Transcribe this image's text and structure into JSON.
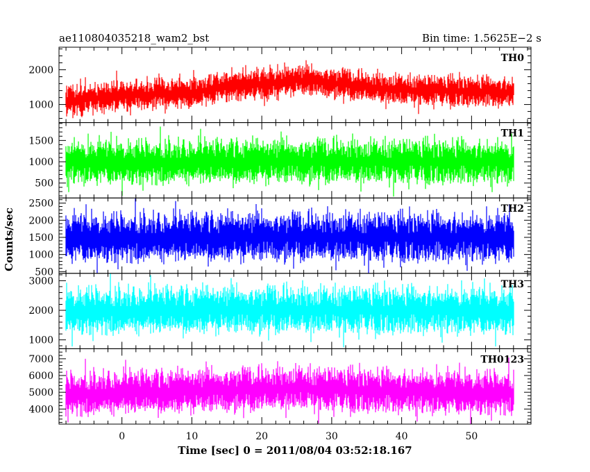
{
  "header": {
    "left_title": "ae110804035218_wam2_bst",
    "right_title": "Bin time: 1.5625E−2 s"
  },
  "chart_data": {
    "type": "line",
    "title": "ae110804035218_wam2_bst",
    "subtitle": "Bin time: 1.5625E−2 s",
    "xlabel": "Time [sec] 0 = 2011/08/04 03:52:18.167",
    "ylabel": "Counts/sec",
    "xlim": [
      -9,
      58.5
    ],
    "x_ticks": [
      0,
      10,
      20,
      30,
      40,
      50
    ],
    "x_ticks_labels": [
      "0",
      "10",
      "20",
      "30",
      "40",
      "50"
    ],
    "x_data_range": [
      -8,
      56
    ],
    "bin_time_s": 0.015625,
    "grid": false,
    "panels": [
      {
        "label": "TH0",
        "color": "#ff0000",
        "ylim": [
          480,
          2650
        ],
        "y_ticks": [
          1000,
          2000
        ],
        "y_ticks_labels": [
          "1000",
          "2000"
        ],
        "trend": [
          [
            -8,
            1100
          ],
          [
            0,
            1250
          ],
          [
            10,
            1350
          ],
          [
            15,
            1500
          ],
          [
            20,
            1600
          ],
          [
            25,
            1700
          ],
          [
            30,
            1620
          ],
          [
            35,
            1500
          ],
          [
            40,
            1420
          ],
          [
            50,
            1380
          ],
          [
            56,
            1350
          ]
        ],
        "amplitude": 520
      },
      {
        "label": "TH1",
        "color": "#00ff00",
        "ylim": [
          150,
          1920
        ],
        "y_ticks": [
          500,
          1000,
          1500
        ],
        "y_ticks_labels": [
          "500",
          "1000",
          "1500"
        ],
        "trend": [
          [
            -8,
            1000
          ],
          [
            56,
            1000
          ]
        ],
        "amplitude": 620
      },
      {
        "label": "TH2",
        "color": "#0000ff",
        "ylim": [
          450,
          2650
        ],
        "y_ticks": [
          500,
          1000,
          1500,
          2000,
          2500
        ],
        "y_ticks_labels": [
          "500",
          "1000",
          "1500",
          "2000",
          "2500"
        ],
        "trend": [
          [
            -8,
            1500
          ],
          [
            56,
            1500
          ]
        ],
        "amplitude": 850
      },
      {
        "label": "TH3",
        "color": "#00ffff",
        "ylim": [
          700,
          3250
        ],
        "y_ticks": [
          1000,
          2000,
          3000
        ],
        "y_ticks_labels": [
          "1000",
          "2000",
          "3000"
        ],
        "trend": [
          [
            -8,
            2000
          ],
          [
            56,
            2000
          ]
        ],
        "amplitude": 950
      },
      {
        "label": "TH0123",
        "color": "#ff00ff",
        "ylim": [
          3100,
          7600
        ],
        "y_ticks": [
          4000,
          5000,
          6000,
          7000
        ],
        "y_ticks_labels": [
          "4000",
          "5000",
          "6000",
          "7000"
        ],
        "trend": [
          [
            -8,
            4900
          ],
          [
            0,
            5000
          ],
          [
            10,
            5050
          ],
          [
            20,
            5150
          ],
          [
            25,
            5250
          ],
          [
            30,
            5150
          ],
          [
            40,
            5050
          ],
          [
            50,
            5000
          ],
          [
            56,
            5000
          ]
        ],
        "amplitude": 1550
      }
    ]
  }
}
